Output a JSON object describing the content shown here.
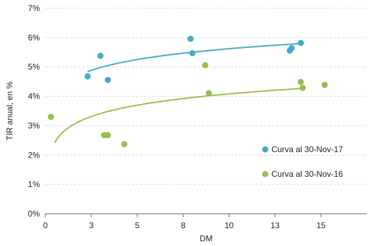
{
  "chart_data": {
    "type": "scatter",
    "title": "",
    "xlabel": "DM",
    "ylabel": "TIR anual, en %",
    "xlim": [
      0,
      17.5
    ],
    "ylim": [
      0,
      7
    ],
    "x_ticks": [
      0,
      2.5,
      5,
      7.5,
      10,
      12.5,
      15
    ],
    "x_tick_labels": [
      "0",
      "3",
      "5",
      "8",
      "10",
      "13",
      "15"
    ],
    "y_ticks": [
      0,
      1,
      2,
      3,
      4,
      5,
      6,
      7
    ],
    "y_tick_labels": [
      "0%",
      "1%",
      "2%",
      "3%",
      "4%",
      "5%",
      "6%",
      "7%"
    ],
    "grid": true,
    "legend_position": "bottom-right",
    "series": [
      {
        "name": "Curva al 30-Nov-17",
        "color": "#45abc8",
        "points": [
          [
            2.3,
            4.68
          ],
          [
            3.0,
            5.38
          ],
          [
            3.4,
            4.56
          ],
          [
            7.9,
            5.96
          ],
          [
            8.0,
            5.47
          ],
          [
            13.3,
            5.56
          ],
          [
            13.4,
            5.64
          ],
          [
            13.9,
            5.82
          ]
        ],
        "trend": [
          2.3,
          7.6,
          14.0,
          4.84,
          5.44,
          5.8
        ]
      },
      {
        "name": "Curva al 30-Nov-16",
        "color": "#96bf4e",
        "points": [
          [
            0.3,
            3.3
          ],
          [
            3.2,
            2.68
          ],
          [
            3.4,
            2.68
          ],
          [
            4.3,
            2.37
          ],
          [
            8.7,
            5.06
          ],
          [
            8.9,
            4.11
          ],
          [
            13.9,
            4.49
          ],
          [
            14.0,
            4.29
          ],
          [
            15.2,
            4.39
          ]
        ],
        "trend": [
          0.5,
          7.0,
          14.0,
          2.42,
          3.73,
          4.27
        ]
      }
    ]
  }
}
